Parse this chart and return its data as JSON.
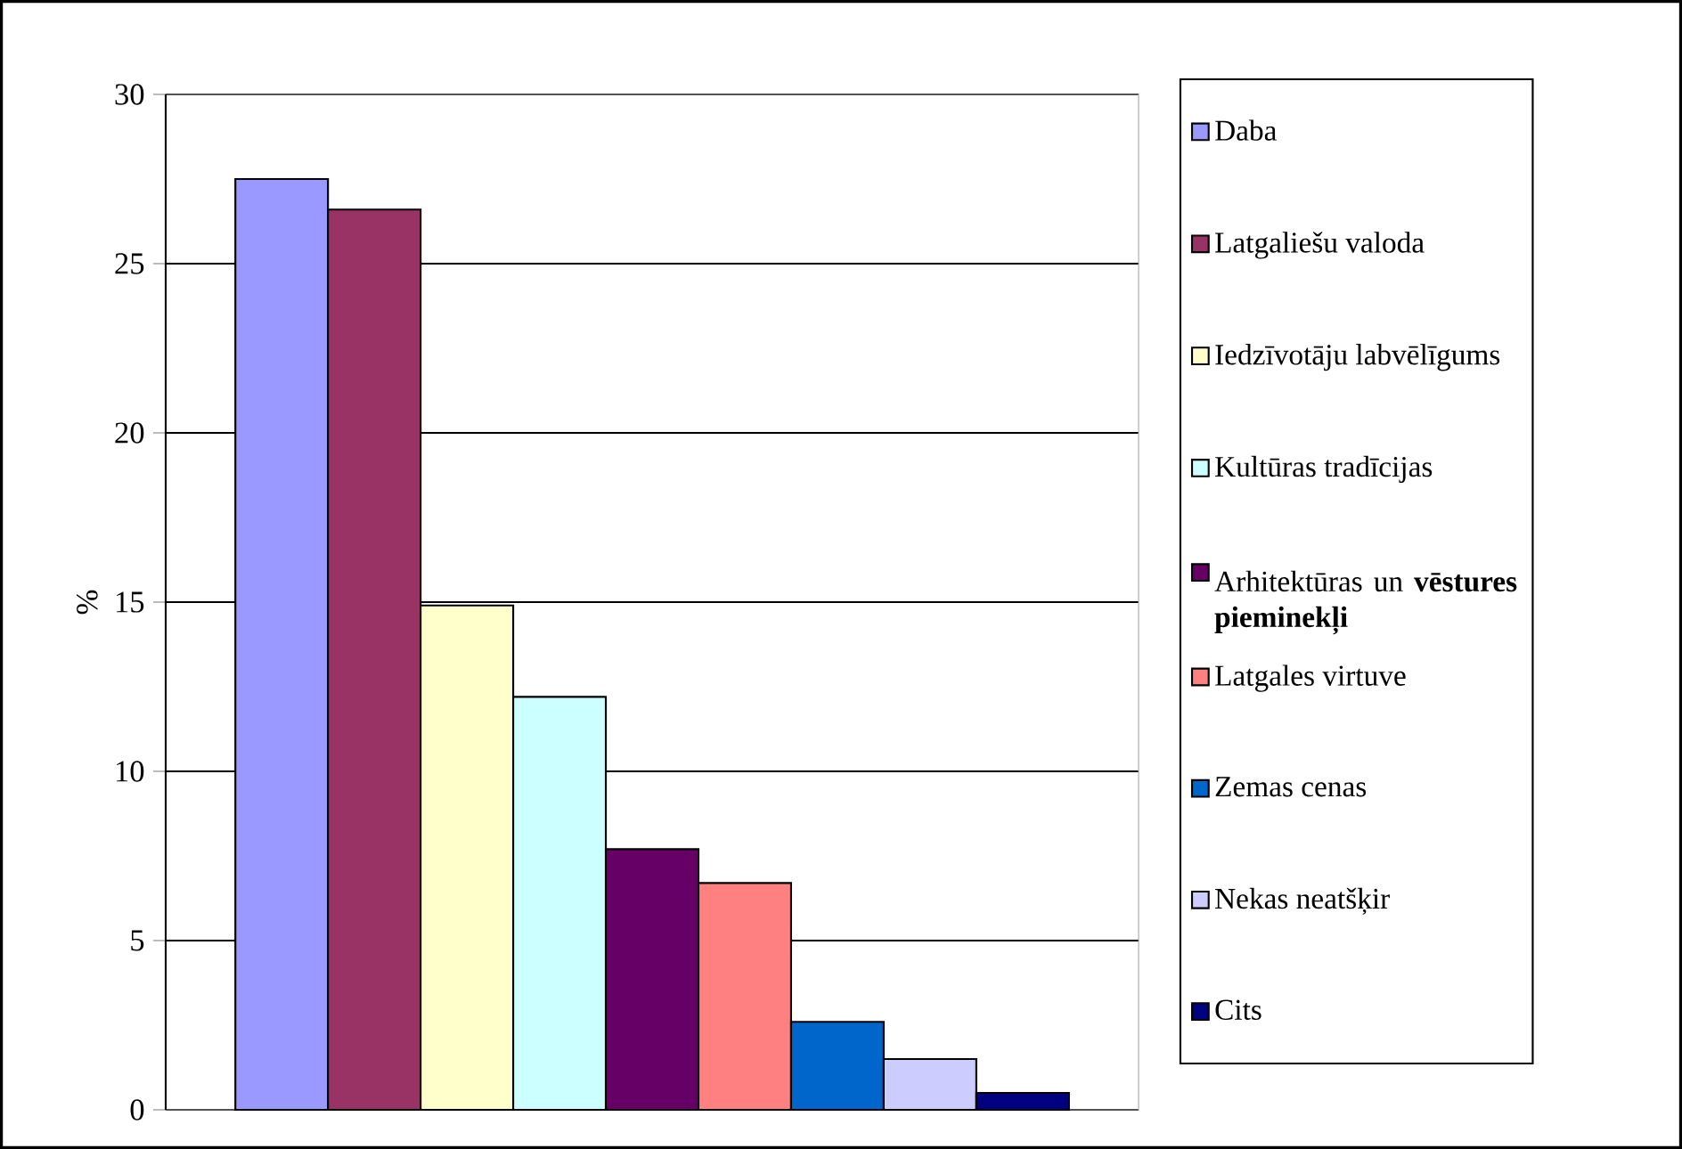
{
  "chart_data": {
    "type": "bar",
    "ylabel": "%",
    "categories": [
      null
    ],
    "series": [
      {
        "name": "Daba",
        "color": "#9999ff",
        "values": [
          27.5
        ]
      },
      {
        "name": "Latgaliešu valoda",
        "color": "#993366",
        "values": [
          26.6
        ]
      },
      {
        "name": "Iedzīvotāju labvēlīgums",
        "color": "#ffffcc",
        "values": [
          14.9
        ]
      },
      {
        "name": "Kultūras tradīcijas",
        "color": "#ccffff",
        "values": [
          12.2
        ]
      },
      {
        "name": "Arhitektūras un **vēstures pieminekļi**",
        "color": "#660066",
        "values": [
          7.7
        ]
      },
      {
        "name": "Latgales virtuve",
        "color": "#ff8080",
        "values": [
          6.7
        ]
      },
      {
        "name": "Zemas cenas",
        "color": "#0066cc",
        "values": [
          2.6
        ]
      },
      {
        "name": "Nekas neatšķir",
        "color": "#ccccff",
        "values": [
          1.5
        ]
      },
      {
        "name": "Cits",
        "color": "#000080",
        "values": [
          0.5
        ]
      }
    ],
    "ylim": [
      0,
      30
    ],
    "yticks": [
      0,
      5,
      10,
      15,
      20,
      25,
      30
    ],
    "grid": "y",
    "legend": "right"
  }
}
